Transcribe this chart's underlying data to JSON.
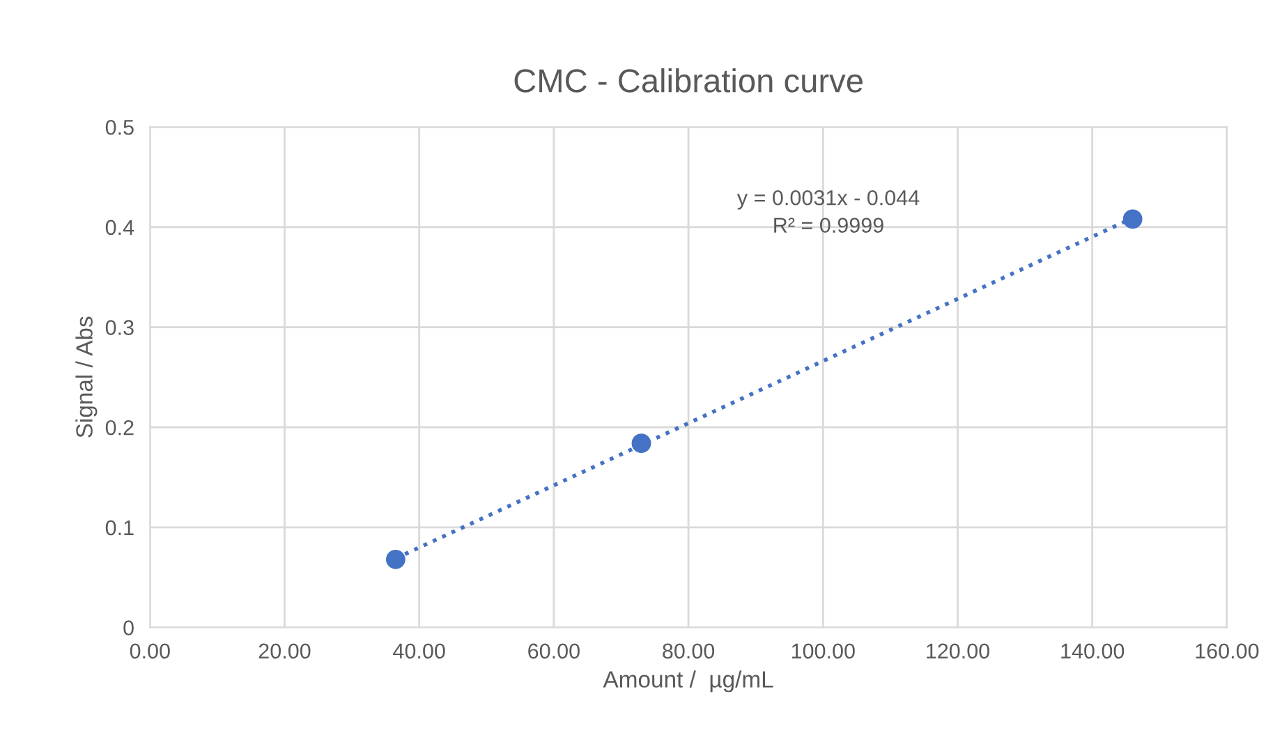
{
  "chart_data": {
    "type": "scatter",
    "title": "CMC - Calibration curve",
    "xlabel": "Amount /  µg/mL",
    "ylabel": "Signal / Abs",
    "series": [
      {
        "color": "#4472c4",
        "marker": "circle",
        "x": [
          36.5,
          73,
          146
        ],
        "values": [
          0.068,
          0.184,
          0.408
        ]
      },
      {
        "type": "line",
        "color": "#4472c4",
        "marker": "none",
        "line_style": "dotted",
        "x": [
          36.5,
          146
        ],
        "values": [
          0.069,
          0.409
        ]
      }
    ],
    "annotations": [
      "y = 0.0031x - 0.044",
      "R² = 0.9999"
    ],
    "xlim": [
      0,
      160
    ],
    "ylim": [
      0,
      0.5
    ],
    "xticks": [
      {
        "value": 0,
        "label": "0.00"
      },
      {
        "value": 20,
        "label": "20.00"
      },
      {
        "value": 40,
        "label": "40.00"
      },
      {
        "value": 60,
        "label": "60.00"
      },
      {
        "value": 80,
        "label": "80.00"
      },
      {
        "value": 100,
        "label": "100.00"
      },
      {
        "value": 120,
        "label": "120.00"
      },
      {
        "value": 140,
        "label": "140.00"
      },
      {
        "value": 160,
        "label": "160.00"
      }
    ],
    "yticks": [
      0,
      0.1,
      0.2,
      0.3,
      0.4,
      0.5
    ],
    "grid": true,
    "legend": false
  }
}
